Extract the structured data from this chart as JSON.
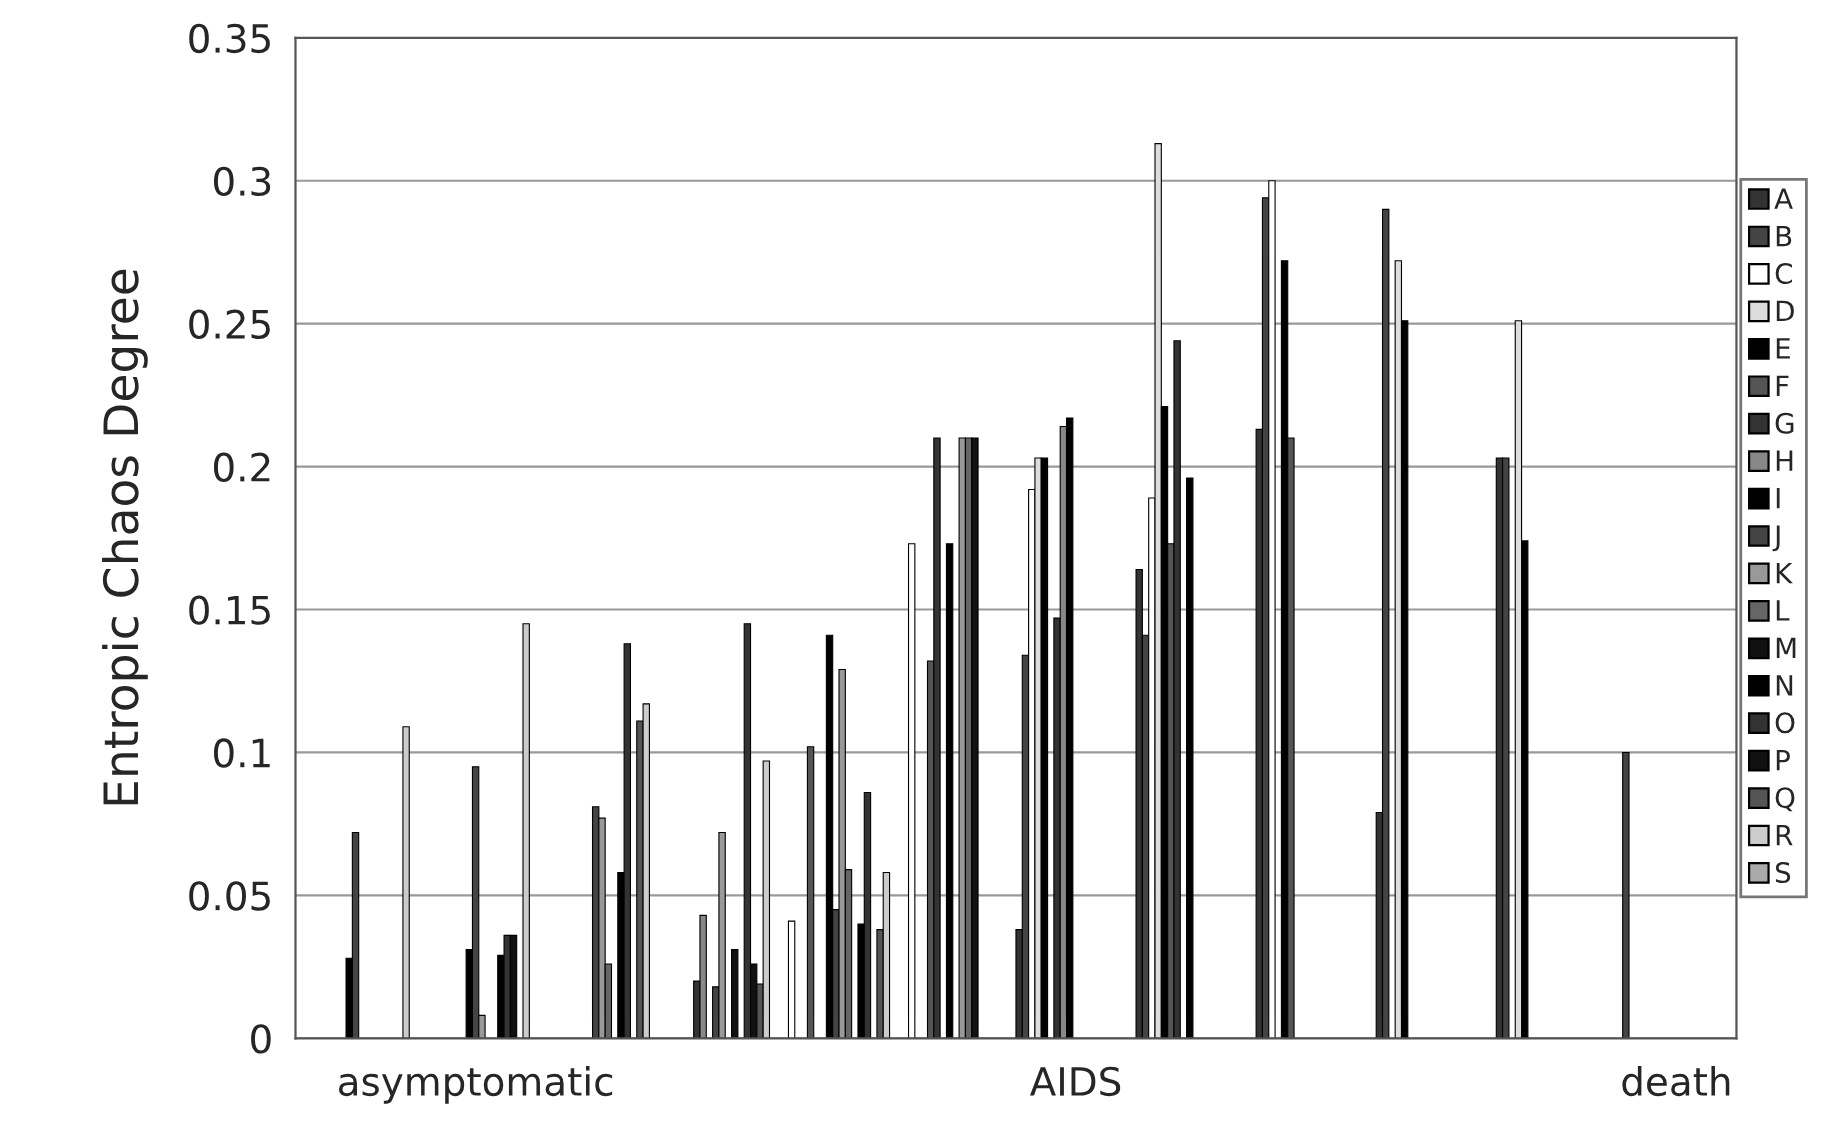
{
  "chart_data": {
    "type": "bar",
    "ylabel": "Entropic Chaos Degree",
    "categories": [
      null,
      "asymptomatic",
      null,
      null,
      null,
      null,
      "AIDS",
      null,
      null,
      null,
      null,
      "death"
    ],
    "ylim": [
      0,
      0.35
    ],
    "yticks": [
      0,
      0.05,
      0.1,
      0.15,
      0.2,
      0.25,
      0.3,
      0.35
    ],
    "grid": "y",
    "legend": "right",
    "series": [
      {
        "name": "A",
        "color": "#333333",
        "values": [
          null,
          null,
          null,
          null,
          null,
          null,
          0.038,
          0.164,
          0.213,
          0.079,
          0.203,
          null
        ]
      },
      {
        "name": "B",
        "color": "#444444",
        "values": [
          null,
          null,
          null,
          null,
          null,
          null,
          0.134,
          0.141,
          0.294,
          0.29,
          0.203,
          0.1
        ]
      },
      {
        "name": "C",
        "color": "#ffffff",
        "values": [
          null,
          null,
          null,
          null,
          0.041,
          0.173,
          0.192,
          0.189,
          0.3,
          null,
          null,
          null
        ]
      },
      {
        "name": "D",
        "color": "#dddddd",
        "values": [
          null,
          null,
          null,
          null,
          null,
          null,
          0.203,
          0.313,
          null,
          0.272,
          0.251,
          null
        ]
      },
      {
        "name": "E",
        "color": "#000000",
        "values": [
          null,
          null,
          null,
          null,
          null,
          null,
          0.203,
          0.221,
          0.272,
          0.251,
          0.174,
          null
        ]
      },
      {
        "name": "F",
        "color": "#555555",
        "values": [
          null,
          null,
          null,
          null,
          0.102,
          0.132,
          null,
          0.173,
          0.21,
          null,
          null,
          null
        ]
      },
      {
        "name": "G",
        "color": "#333333",
        "values": [
          null,
          null,
          null,
          0.02,
          null,
          0.21,
          0.147,
          0.244,
          null,
          null,
          null,
          null
        ]
      },
      {
        "name": "H",
        "color": "#888888",
        "values": [
          null,
          null,
          null,
          0.043,
          null,
          null,
          0.214,
          null,
          null,
          null,
          null,
          null
        ]
      },
      {
        "name": "I",
        "color": "#000000",
        "values": [
          0.028,
          0.031,
          null,
          null,
          0.141,
          0.173,
          0.217,
          0.196,
          null,
          null,
          null,
          null
        ]
      },
      {
        "name": "J",
        "color": "#444444",
        "values": [
          0.072,
          0.095,
          0.081,
          0.018,
          0.045,
          null,
          null,
          null,
          null,
          null,
          null,
          null
        ]
      },
      {
        "name": "K",
        "color": "#999999",
        "values": [
          null,
          0.008,
          0.077,
          0.072,
          0.129,
          0.21,
          null,
          null,
          null,
          null,
          null,
          null
        ]
      },
      {
        "name": "L",
        "color": "#666666",
        "values": [
          null,
          null,
          0.026,
          null,
          0.059,
          0.21,
          null,
          null,
          null,
          null,
          null,
          null
        ]
      },
      {
        "name": "M",
        "color": "#111111",
        "values": [
          null,
          null,
          null,
          0.031,
          null,
          0.21,
          null,
          null,
          null,
          null,
          null,
          null
        ]
      },
      {
        "name": "N",
        "color": "#000000",
        "values": [
          null,
          0.029,
          0.058,
          null,
          0.04,
          null,
          null,
          null,
          null,
          null,
          null,
          null
        ]
      },
      {
        "name": "O",
        "color": "#333333",
        "values": [
          null,
          0.036,
          0.138,
          0.145,
          0.086,
          null,
          null,
          null,
          null,
          null,
          null,
          null
        ]
      },
      {
        "name": "P",
        "color": "#111111",
        "values": [
          null,
          0.036,
          null,
          0.026,
          null,
          null,
          null,
          null,
          null,
          null,
          null,
          null
        ]
      },
      {
        "name": "Q",
        "color": "#555555",
        "values": [
          null,
          null,
          0.111,
          0.019,
          0.038,
          null,
          null,
          null,
          null,
          null,
          null,
          null
        ]
      },
      {
        "name": "R",
        "color": "#cccccc",
        "values": [
          0.109,
          0.145,
          0.117,
          0.097,
          0.058,
          null,
          null,
          null,
          null,
          null,
          null,
          null
        ]
      },
      {
        "name": "S",
        "color": "#aaaaaa",
        "values": [
          null,
          null,
          null,
          null,
          null,
          null,
          null,
          null,
          null,
          null,
          null,
          null
        ]
      }
    ]
  }
}
